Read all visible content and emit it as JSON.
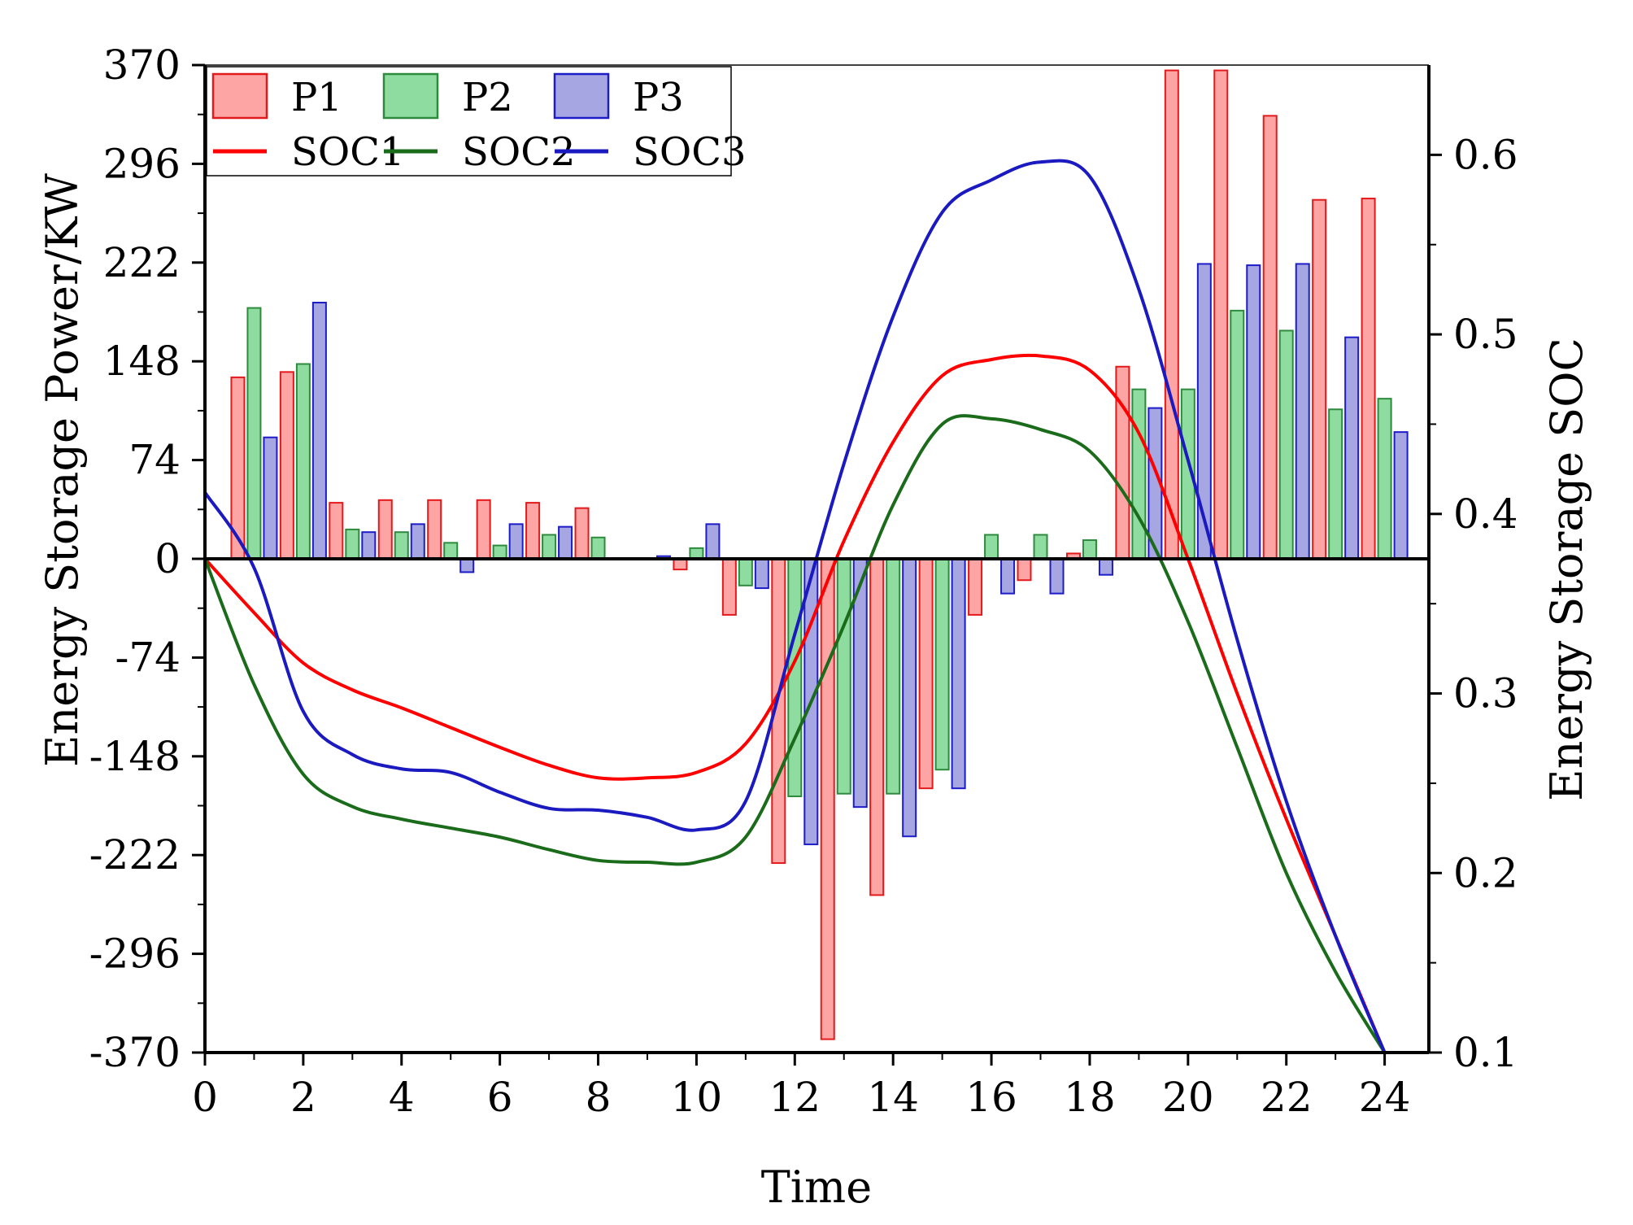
{
  "chart_data": {
    "type": "bar+line",
    "xlabel": "Time",
    "ylabel": "Energy Storage Power/KW",
    "y2label": "Energy Storage SOC",
    "xlim": [
      0,
      24.9
    ],
    "ylim": [
      -370,
      370
    ],
    "y2lim": [
      0.1,
      0.65
    ],
    "xticks": [
      0,
      2,
      4,
      6,
      8,
      10,
      12,
      14,
      16,
      18,
      20,
      22,
      24
    ],
    "yticks": [
      -370,
      -296,
      -222,
      -148,
      -74,
      0,
      74,
      148,
      222,
      296,
      370
    ],
    "yticklabels": [
      "-370",
      "-296",
      "-222",
      "-148",
      "-74",
      "0",
      "74",
      "148",
      "222",
      "296",
      "370"
    ],
    "y2ticks": [
      0.1,
      0.2,
      0.3,
      0.4,
      0.5,
      0.6
    ],
    "y2ticklabels": [
      "0.1",
      "0.2",
      "0.3",
      "0.4",
      "0.5",
      "0.6"
    ],
    "hours": [
      1,
      2,
      3,
      4,
      5,
      6,
      7,
      8,
      9,
      10,
      11,
      12,
      13,
      14,
      15,
      16,
      17,
      18,
      19,
      20,
      21,
      22,
      23,
      24
    ],
    "bar_series": [
      {
        "name": "P1",
        "fill": "#fda4a4",
        "stroke": "#e31a1c",
        "values": [
          136,
          140,
          42,
          44,
          44,
          44,
          42,
          38,
          0,
          -8,
          -42,
          -228,
          -360,
          -252,
          -172,
          -42,
          -16,
          4,
          144,
          366,
          366,
          332,
          269,
          270
        ]
      },
      {
        "name": "P2",
        "fill": "#8fdca0",
        "stroke": "#2e8b3e",
        "values": [
          188,
          146,
          22,
          20,
          12,
          10,
          18,
          16,
          0,
          8,
          -20,
          -178,
          -176,
          -176,
          -158,
          18,
          18,
          14,
          127,
          127,
          186,
          171,
          112,
          120
        ]
      },
      {
        "name": "P3",
        "fill": "#a6a6e3",
        "stroke": "#1c1cc8",
        "values": [
          91,
          192,
          20,
          26,
          -10,
          26,
          24,
          0,
          2,
          26,
          -22,
          -214,
          -186,
          -208,
          -172,
          -26,
          -26,
          -12,
          113,
          221,
          220,
          221,
          166,
          95
        ]
      }
    ],
    "line_series": [
      {
        "name": "SOC1",
        "color": "#ff0000",
        "x": [
          0,
          1,
          2,
          3,
          4,
          5,
          6,
          7,
          8,
          9,
          10,
          11,
          12,
          13,
          14,
          15,
          16,
          17,
          18,
          19,
          20,
          21,
          22,
          23,
          24
        ],
        "y": [
          0.375,
          0.345,
          0.317,
          0.302,
          0.292,
          0.281,
          0.27,
          0.26,
          0.253,
          0.253,
          0.256,
          0.272,
          0.318,
          0.385,
          0.44,
          0.477,
          0.486,
          0.488,
          0.48,
          0.445,
          0.375,
          0.3,
          0.23,
          0.165,
          0.1
        ]
      },
      {
        "name": "SOC2",
        "color": "#1a6b1a",
        "x": [
          0,
          1,
          2,
          3,
          4,
          5,
          6,
          7,
          8,
          9,
          10,
          11,
          12,
          13,
          14,
          15,
          16,
          17,
          18,
          19,
          20,
          21,
          22,
          23,
          24
        ],
        "y": [
          0.375,
          0.305,
          0.255,
          0.237,
          0.23,
          0.225,
          0.22,
          0.213,
          0.207,
          0.206,
          0.206,
          0.22,
          0.275,
          0.338,
          0.405,
          0.45,
          0.453,
          0.447,
          0.435,
          0.398,
          0.34,
          0.27,
          0.2,
          0.145,
          0.1
        ]
      },
      {
        "name": "SOC3",
        "color": "#1a1ac0",
        "x": [
          0,
          1,
          2,
          3,
          4,
          5,
          6,
          7,
          8,
          9,
          10,
          11,
          12,
          13,
          14,
          15,
          16,
          17,
          18,
          19,
          20,
          21,
          22,
          23,
          24
        ],
        "y": [
          0.412,
          0.37,
          0.29,
          0.266,
          0.258,
          0.256,
          0.245,
          0.236,
          0.235,
          0.231,
          0.224,
          0.24,
          0.333,
          0.428,
          0.51,
          0.568,
          0.586,
          0.596,
          0.588,
          0.525,
          0.43,
          0.33,
          0.24,
          0.165,
          0.1
        ]
      }
    ],
    "legend_position": "top-left",
    "grid": false
  }
}
